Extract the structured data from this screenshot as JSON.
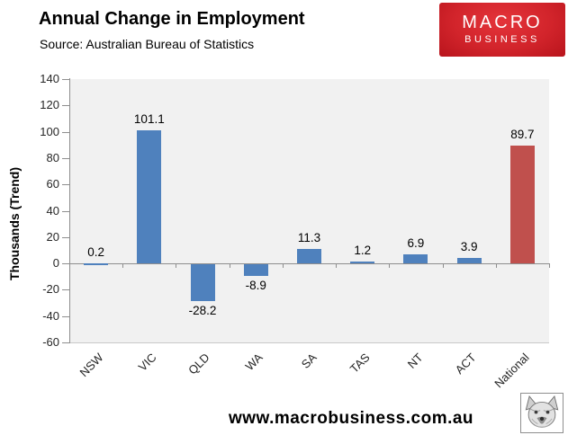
{
  "header": {
    "title": "Annual Change in Employment",
    "subtitle": "Source: Australian Bureau of Statistics",
    "logo": {
      "line1": "MACRO",
      "line2": "BUSINESS",
      "bg_color": "#d2242b",
      "text_color": "#ffffff"
    }
  },
  "chart_data": {
    "type": "bar",
    "title": "Annual Change in Employment",
    "categories": [
      "NSW",
      "VIC",
      "QLD",
      "WA",
      "SA",
      "TAS",
      "NT",
      "ACT",
      "National"
    ],
    "values": [
      0.2,
      101.1,
      -28.2,
      -8.9,
      11.3,
      1.2,
      6.9,
      3.9,
      89.7
    ],
    "bar_colors": [
      "#4f81bd",
      "#4f81bd",
      "#4f81bd",
      "#4f81bd",
      "#4f81bd",
      "#4f81bd",
      "#4f81bd",
      "#4f81bd",
      "#c0504d"
    ],
    "data_labels": [
      "0.2",
      "101.1",
      "-28.2",
      "-8.9",
      "11.3",
      "1.2",
      "6.9",
      "3.9",
      "89.7"
    ],
    "xlabel": "",
    "ylabel": "Thousands (Trend)",
    "ylim": [
      -60,
      140
    ],
    "ytick_step": 20,
    "yticks": [
      140,
      120,
      100,
      80,
      60,
      40,
      20,
      0,
      -20,
      -40,
      -60
    ],
    "grid": false,
    "legend": "none",
    "plot_bg": "#f1f1f1",
    "axis_color": "#8e8e8e",
    "plot_border_color": "#c9c9c9",
    "label_color": "#262626"
  },
  "footer": {
    "website": "www.macrobusiness.com.au",
    "logo_icon": "wolf-icon"
  }
}
